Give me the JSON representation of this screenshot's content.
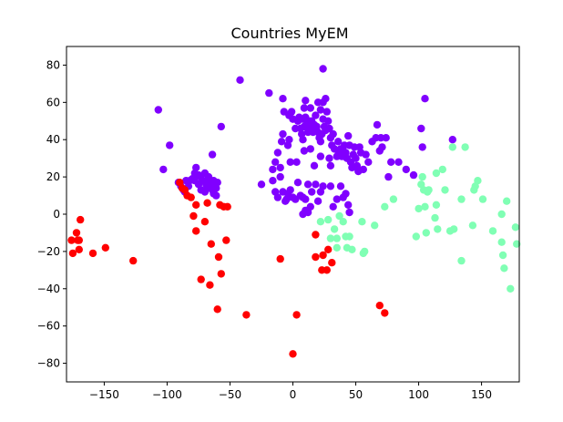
{
  "chart_data": {
    "type": "scatter",
    "title": "Countries MyEM",
    "xlabel": "",
    "ylabel": "",
    "xlim": [
      -180,
      180
    ],
    "ylim": [
      -90,
      90
    ],
    "xticks": [
      -150,
      -100,
      -50,
      0,
      50,
      100,
      150
    ],
    "yticks": [
      -80,
      -60,
      -40,
      -20,
      0,
      20,
      40,
      60,
      80
    ],
    "grid": false,
    "legend": "none",
    "series": [
      {
        "color": "#8000ff",
        "points": [
          [
            -107,
            56
          ],
          [
            -98,
            37
          ],
          [
            -103,
            24
          ],
          [
            -42,
            72
          ],
          [
            -57,
            47
          ],
          [
            -64,
            32
          ],
          [
            -91,
            17
          ],
          [
            -89,
            15
          ],
          [
            -87,
            13
          ],
          [
            -85,
            18
          ],
          [
            -83,
            15
          ],
          [
            -80,
            19
          ],
          [
            -78,
            22
          ],
          [
            -77,
            25
          ],
          [
            -75,
            21
          ],
          [
            -73,
            20
          ],
          [
            -72,
            18
          ],
          [
            -70,
            22
          ],
          [
            -68,
            18
          ],
          [
            -67,
            17
          ],
          [
            -66,
            18
          ],
          [
            -65,
            15
          ],
          [
            -64,
            13
          ],
          [
            -63,
            11
          ],
          [
            -62,
            16
          ],
          [
            -61,
            14
          ],
          [
            -61,
            10
          ],
          [
            -60,
            17
          ],
          [
            -70,
            12
          ],
          [
            -75,
            16
          ],
          [
            -82,
            18
          ],
          [
            -86,
            12
          ],
          [
            -78,
            18
          ],
          [
            -68,
            14
          ],
          [
            -73,
            13
          ],
          [
            -63,
            18
          ],
          [
            -67,
            20
          ],
          [
            -69,
            16
          ],
          [
            -19,
            65
          ],
          [
            -8,
            62
          ],
          [
            -3,
            53
          ],
          [
            0,
            51
          ],
          [
            -1,
            55
          ],
          [
            -7,
            55
          ],
          [
            -9,
            39
          ],
          [
            -8,
            43
          ],
          [
            -4,
            37
          ],
          [
            -3,
            40
          ],
          [
            2,
            46
          ],
          [
            4,
            50
          ],
          [
            5,
            52
          ],
          [
            6,
            46
          ],
          [
            7,
            43
          ],
          [
            8,
            51
          ],
          [
            9,
            47
          ],
          [
            10,
            52
          ],
          [
            11,
            48
          ],
          [
            12,
            44
          ],
          [
            13,
            50
          ],
          [
            14,
            46
          ],
          [
            15,
            50
          ],
          [
            16,
            44
          ],
          [
            17,
            48
          ],
          [
            18,
            53
          ],
          [
            19,
            47
          ],
          [
            20,
            44
          ],
          [
            21,
            41
          ],
          [
            22,
            39
          ],
          [
            23,
            43
          ],
          [
            24,
            51
          ],
          [
            25,
            47
          ],
          [
            26,
            45
          ],
          [
            27,
            55
          ],
          [
            28,
            50
          ],
          [
            29,
            46
          ],
          [
            30,
            41
          ],
          [
            31,
            37
          ],
          [
            32,
            43
          ],
          [
            33,
            35
          ],
          [
            35,
            31
          ],
          [
            36,
            34
          ],
          [
            36,
            39
          ],
          [
            38,
            35
          ],
          [
            39,
            31
          ],
          [
            40,
            34
          ],
          [
            41,
            37
          ],
          [
            42,
            33
          ],
          [
            43,
            30
          ],
          [
            44,
            42
          ],
          [
            45,
            37
          ],
          [
            46,
            28
          ],
          [
            47,
            25
          ],
          [
            48,
            32
          ],
          [
            49,
            36
          ],
          [
            50,
            30
          ],
          [
            51,
            26
          ],
          [
            52,
            23
          ],
          [
            53,
            36
          ],
          [
            54,
            33
          ],
          [
            56,
            24
          ],
          [
            58,
            32
          ],
          [
            60,
            28
          ],
          [
            63,
            39
          ],
          [
            66,
            41
          ],
          [
            67,
            48
          ],
          [
            69,
            34
          ],
          [
            70,
            41
          ],
          [
            71,
            36
          ],
          [
            74,
            41
          ],
          [
            76,
            20
          ],
          [
            78,
            28
          ],
          [
            84,
            28
          ],
          [
            90,
            24
          ],
          [
            96,
            21
          ],
          [
            102,
            46
          ],
          [
            103,
            36
          ],
          [
            105,
            62
          ],
          [
            127,
            40
          ],
          [
            24,
            78
          ],
          [
            24,
            60
          ],
          [
            22,
            56
          ],
          [
            26,
            62
          ],
          [
            20,
            60
          ],
          [
            10,
            61
          ],
          [
            14,
            57
          ],
          [
            9,
            57
          ],
          [
            -25,
            16
          ],
          [
            -16,
            18
          ],
          [
            -14,
            12
          ],
          [
            -12,
            9
          ],
          [
            -10,
            20
          ],
          [
            -8,
            12
          ],
          [
            -6,
            7
          ],
          [
            -4,
            11
          ],
          [
            -2,
            13
          ],
          [
            0,
            9
          ],
          [
            2,
            8
          ],
          [
            4,
            17
          ],
          [
            6,
            10
          ],
          [
            8,
            9
          ],
          [
            10,
            8
          ],
          [
            12,
            16
          ],
          [
            14,
            4
          ],
          [
            15,
            12
          ],
          [
            18,
            16
          ],
          [
            20,
            7
          ],
          [
            22,
            12
          ],
          [
            24,
            15
          ],
          [
            30,
            15
          ],
          [
            32,
            4
          ],
          [
            35,
            8
          ],
          [
            38,
            15
          ],
          [
            40,
            9
          ],
          [
            42,
            11
          ],
          [
            44,
            5
          ],
          [
            45,
            1
          ],
          [
            8,
            0
          ],
          [
            10,
            2
          ],
          [
            12,
            1
          ],
          [
            -5,
            8
          ],
          [
            -16,
            24
          ],
          [
            -14,
            28
          ],
          [
            -10,
            25
          ],
          [
            -2,
            28
          ],
          [
            3,
            28
          ],
          [
            9,
            34
          ],
          [
            17,
            26
          ],
          [
            30,
            26
          ],
          [
            -12,
            33
          ],
          [
            8,
            40
          ],
          [
            14,
            35
          ],
          [
            22,
            31
          ],
          [
            29,
            30
          ]
        ]
      },
      {
        "color": "#80ffb4",
        "points": [
          [
            22,
            -4
          ],
          [
            28,
            -3
          ],
          [
            30,
            -13
          ],
          [
            33,
            -8
          ],
          [
            35,
            -18
          ],
          [
            35,
            -13
          ],
          [
            37,
            -1
          ],
          [
            40,
            -4
          ],
          [
            42,
            -12
          ],
          [
            43,
            -18
          ],
          [
            45,
            -12
          ],
          [
            47,
            -19
          ],
          [
            55,
            -4
          ],
          [
            56,
            -21
          ],
          [
            57,
            -20
          ],
          [
            65,
            -6
          ],
          [
            73,
            4
          ],
          [
            80,
            8
          ],
          [
            98,
            -12
          ],
          [
            100,
            3
          ],
          [
            102,
            16
          ],
          [
            103,
            20
          ],
          [
            104,
            13
          ],
          [
            105,
            4
          ],
          [
            106,
            -10
          ],
          [
            107,
            12
          ],
          [
            108,
            13
          ],
          [
            113,
            -2
          ],
          [
            114,
            5
          ],
          [
            114,
            22
          ],
          [
            115,
            -8
          ],
          [
            119,
            24
          ],
          [
            121,
            13
          ],
          [
            125,
            -9
          ],
          [
            127,
            36
          ],
          [
            134,
            -25
          ],
          [
            134,
            8
          ],
          [
            137,
            36
          ],
          [
            143,
            -6
          ],
          [
            144,
            13
          ],
          [
            145,
            15
          ],
          [
            147,
            18
          ],
          [
            151,
            8
          ],
          [
            159,
            -9
          ],
          [
            166,
            -15
          ],
          [
            166,
            0
          ],
          [
            167,
            -22
          ],
          [
            168,
            -29
          ],
          [
            170,
            7
          ],
          [
            173,
            -40
          ],
          [
            177,
            -7
          ],
          [
            178,
            -16
          ],
          [
            128,
            -8
          ]
        ]
      },
      {
        "color": "#ff0000",
        "points": [
          [
            -176,
            -14
          ],
          [
            -175,
            -21
          ],
          [
            -172,
            -10
          ],
          [
            -171,
            -14
          ],
          [
            -170,
            -19
          ],
          [
            -170,
            -14
          ],
          [
            -169,
            -3
          ],
          [
            -159,
            -21
          ],
          [
            -149,
            -18
          ],
          [
            -127,
            -25
          ],
          [
            -90,
            17
          ],
          [
            -88,
            14
          ],
          [
            -86,
            13
          ],
          [
            -84,
            10
          ],
          [
            -81,
            9
          ],
          [
            -79,
            -1
          ],
          [
            -77,
            -9
          ],
          [
            -77,
            5
          ],
          [
            -73,
            -35
          ],
          [
            -70,
            -4
          ],
          [
            -68,
            6
          ],
          [
            -66,
            -38
          ],
          [
            -65,
            -16
          ],
          [
            -60,
            -51
          ],
          [
            -59,
            -23
          ],
          [
            -58,
            5
          ],
          [
            -57,
            -32
          ],
          [
            -55,
            4
          ],
          [
            -53,
            -14
          ],
          [
            -52,
            4
          ],
          [
            -37,
            -54
          ],
          [
            -10,
            -24
          ],
          [
            0,
            -75
          ],
          [
            3,
            -54
          ],
          [
            18,
            -11
          ],
          [
            18,
            -23
          ],
          [
            23,
            -30
          ],
          [
            24,
            -22
          ],
          [
            27,
            -30
          ],
          [
            28,
            -19
          ],
          [
            31,
            -26
          ],
          [
            69,
            -49
          ],
          [
            73,
            -53
          ]
        ]
      }
    ]
  }
}
